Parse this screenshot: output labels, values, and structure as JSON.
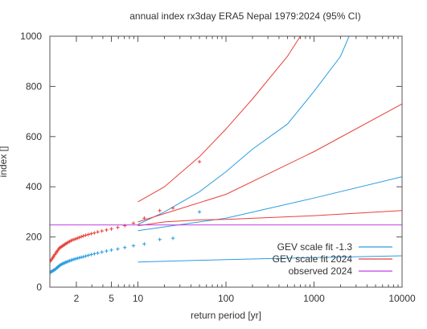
{
  "chart_data": {
    "type": "scatter",
    "title": "annual index rx3day ERA5 Nepal 1979:2024 (95% CI)",
    "xlabel": "return period [yr]",
    "ylabel": "index []",
    "x_scale": "log",
    "xlim": [
      1,
      10000
    ],
    "ylim": [
      0,
      1000
    ],
    "x_ticks": [
      {
        "value": 2,
        "label": "2"
      },
      {
        "value": 5,
        "label": "5"
      },
      {
        "value": 10,
        "label": "10"
      },
      {
        "value": 100,
        "label": "100"
      },
      {
        "value": 1000,
        "label": "1000"
      },
      {
        "value": 10000,
        "label": "10000"
      }
    ],
    "y_ticks": [
      {
        "value": 0,
        "label": "0"
      },
      {
        "value": 200,
        "label": "200"
      },
      {
        "value": 400,
        "label": "400"
      },
      {
        "value": 600,
        "label": "600"
      },
      {
        "value": 800,
        "label": "800"
      },
      {
        "value": 1000,
        "label": "1000"
      }
    ],
    "grid": false,
    "legend_position": "bottom-right",
    "colors": {
      "red": "#e8403a",
      "blue": "#2b9de0",
      "magenta": "#c040e0",
      "axis": "#555555",
      "text": "#333333"
    },
    "series": [
      {
        "name": "GEV scale fit -1.3",
        "color": "#2b9de0",
        "lines": [
          {
            "role": "fit",
            "x": [
              10,
              100,
              1000,
              10000
            ],
            "y": [
              100,
              110,
              118,
              125
            ]
          },
          {
            "role": "ci-upper",
            "x": [
              10,
              20,
              50,
              100,
              200,
              500,
              1000,
              2000,
              2500
            ],
            "y": [
              250,
              300,
              380,
              460,
              550,
              650,
              780,
              920,
              1000
            ]
          },
          {
            "role": "ci-upper",
            "x": [
              10,
              100,
              1000,
              10000
            ],
            "y": [
              225,
              275,
              355,
              440
            ]
          }
        ],
        "points": {
          "marker": "+",
          "x": [
            1.02,
            1.04,
            1.07,
            1.09,
            1.11,
            1.14,
            1.17,
            1.19,
            1.22,
            1.25,
            1.28,
            1.31,
            1.35,
            1.39,
            1.43,
            1.47,
            1.52,
            1.56,
            1.62,
            1.67,
            1.74,
            1.8,
            1.88,
            1.96,
            2.05,
            2.15,
            2.27,
            2.4,
            2.56,
            2.74,
            2.95,
            3.2,
            3.5,
            3.9,
            4.4,
            5.0,
            5.9,
            7.1,
            8.9,
            11.8,
            17.7,
            25,
            50
          ],
          "y": [
            60,
            62,
            64,
            66,
            68,
            70,
            73,
            76,
            79,
            82,
            85,
            88,
            91,
            93,
            95,
            97,
            99,
            101,
            103,
            105,
            107,
            109,
            111,
            113,
            115,
            117,
            119,
            121,
            124,
            127,
            130,
            133,
            136,
            140,
            144,
            148,
            152,
            158,
            165,
            172,
            190,
            195,
            300
          ]
        }
      },
      {
        "name": "GEV scale fit 2024",
        "color": "#e8403a",
        "lines": [
          {
            "role": "fit",
            "x": [
              10,
              20,
              50,
              100,
              1000,
              10000
            ],
            "y": [
              245,
              260,
              268,
              270,
              285,
              305
            ]
          },
          {
            "role": "ci-upper",
            "x": [
              10,
              20,
              50,
              100,
              200,
              500,
              700
            ],
            "y": [
              340,
              400,
              520,
              630,
              750,
              920,
              1000
            ]
          },
          {
            "role": "ci-upper",
            "x": [
              10,
              100,
              1000,
              10000
            ],
            "y": [
              260,
              370,
              540,
              730
            ]
          }
        ],
        "points": {
          "marker": "+",
          "x": [
            1.02,
            1.04,
            1.07,
            1.09,
            1.11,
            1.14,
            1.17,
            1.19,
            1.22,
            1.25,
            1.28,
            1.31,
            1.35,
            1.39,
            1.43,
            1.47,
            1.52,
            1.56,
            1.62,
            1.67,
            1.74,
            1.8,
            1.88,
            1.96,
            2.05,
            2.15,
            2.27,
            2.4,
            2.56,
            2.74,
            2.95,
            3.2,
            3.5,
            3.9,
            4.4,
            5.0,
            5.9,
            7.1,
            8.9,
            11.8,
            17.7,
            25,
            50
          ],
          "y": [
            105,
            110,
            115,
            120,
            125,
            130,
            135,
            140,
            145,
            150,
            155,
            158,
            161,
            164,
            167,
            170,
            173,
            176,
            179,
            182,
            185,
            188,
            190,
            192,
            195,
            198,
            201,
            204,
            207,
            210,
            213,
            216,
            220,
            224,
            228,
            232,
            238,
            245,
            255,
            275,
            305,
            315,
            500
          ]
        }
      },
      {
        "name": "observed 2024",
        "color": "#c040e0",
        "lines": [
          {
            "role": "observed",
            "x": [
              1,
              10000
            ],
            "y": [
              248,
              248
            ]
          }
        ]
      }
    ],
    "legend": [
      {
        "label": "GEV scale fit -1.3",
        "color": "#2b9de0"
      },
      {
        "label": "GEV scale fit 2024",
        "color": "#e8403a"
      },
      {
        "label": "observed 2024",
        "color": "#c040e0"
      }
    ]
  }
}
